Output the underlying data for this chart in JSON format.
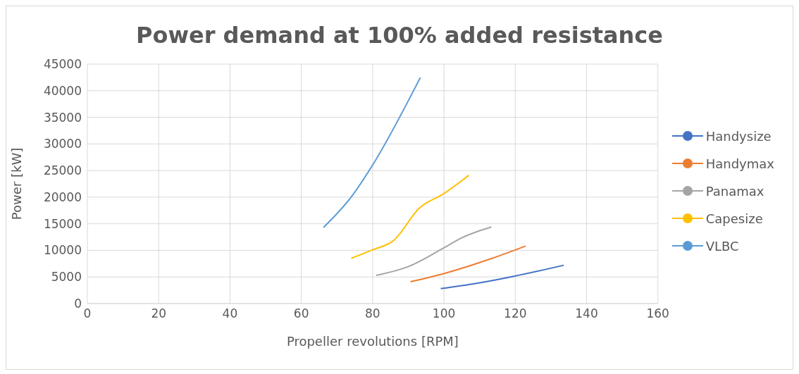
{
  "chart_data": {
    "type": "line",
    "title": "Power demand at 100% added resistance",
    "xlabel": "Propeller revolutions [RPM]",
    "ylabel": "Power [kW]",
    "xlim": [
      0,
      160
    ],
    "xticks": [
      0,
      20,
      40,
      60,
      80,
      100,
      120,
      140,
      160
    ],
    "ylim": [
      0,
      45000
    ],
    "yticks": [
      0,
      5000,
      10000,
      15000,
      20000,
      25000,
      30000,
      35000,
      40000,
      45000
    ],
    "grid": true,
    "legend": "right",
    "marker": "none",
    "line_style": "solid",
    "series": [
      {
        "name": "Handysize",
        "color": "#4472c4",
        "x": [
          99.1,
          109.2,
          119.4,
          133.6
        ],
        "values": [
          2800,
          3800,
          5100,
          7200
        ]
      },
      {
        "name": "Handymax",
        "color": "#ed7d31",
        "x": [
          90.6,
          99.8,
          113.5,
          122.9
        ],
        "values": [
          4100,
          5600,
          8500,
          10800
        ]
      },
      {
        "name": "Panamax",
        "color": "#a5a5a5",
        "x": [
          81,
          90.2,
          99.8,
          104.8,
          113.3
        ],
        "values": [
          5300,
          7000,
          10400,
          12300,
          14400
        ]
      },
      {
        "name": "Capesize",
        "color": "#ffc000",
        "x": [
          74,
          80,
          85.8,
          93.2,
          99.8,
          107
        ],
        "values": [
          8500,
          10100,
          11800,
          18000,
          20600,
          24100
        ]
      },
      {
        "name": "VLBC",
        "color": "#5b9bd5",
        "x": [
          66.2,
          74.2,
          79.7,
          93.4
        ],
        "values": [
          14300,
          20200,
          25700,
          42500
        ]
      }
    ]
  }
}
